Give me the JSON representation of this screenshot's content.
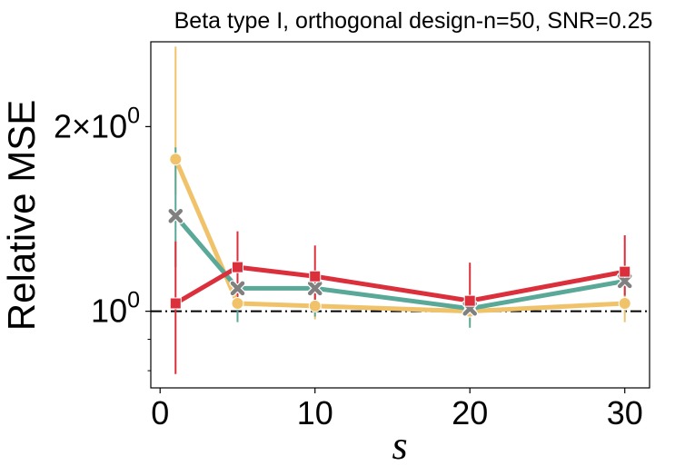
{
  "chart_data": {
    "type": "line",
    "title": "Beta type I, orthogonal design-n=50, SNR=0.25",
    "xlabel": "s",
    "ylabel": "Relative MSE",
    "x": [
      1,
      5,
      10,
      20,
      30
    ],
    "xlim": [
      -0.6,
      31.6
    ],
    "ylim": [
      0.75,
      2.75
    ],
    "yscale": "log",
    "xticks": [
      0,
      10,
      20,
      30
    ],
    "xtick_labels": [
      "0",
      "10",
      "20",
      "30"
    ],
    "yticks_major": [
      {
        "value": 1,
        "base": "10",
        "exp": "0"
      },
      {
        "value": 2,
        "mult": "2",
        "times": "×",
        "base": "10",
        "exp": "0"
      }
    ],
    "yticks_minor": [
      0.8,
      0.9
    ],
    "reference_line": {
      "y": 1.0,
      "style": "dash-dot",
      "color": "#000000"
    },
    "series": [
      {
        "name": "series-yellow",
        "color": "#f0c36a",
        "marker": "circle",
        "values": [
          1.77,
          1.03,
          1.02,
          1.0,
          1.03
        ],
        "err_low": [
          1.55,
          0.97,
          0.97,
          0.96,
          0.96
        ],
        "err_high": [
          2.7,
          1.07,
          1.06,
          1.03,
          1.06
        ]
      },
      {
        "name": "series-teal",
        "color": "#5aa898",
        "marker": "x",
        "values": [
          1.43,
          1.09,
          1.09,
          1.01,
          1.12
        ],
        "err_low": [
          1.18,
          0.96,
          0.98,
          0.94,
          1.06
        ],
        "err_high": [
          1.85,
          1.16,
          1.13,
          1.05,
          1.18
        ]
      },
      {
        "name": "series-red",
        "color": "#dc2f3c",
        "marker": "square",
        "values": [
          1.03,
          1.18,
          1.14,
          1.04,
          1.16
        ],
        "err_low": [
          0.79,
          1.05,
          1.01,
          0.98,
          1.06
        ],
        "err_high": [
          1.3,
          1.35,
          1.28,
          1.2,
          1.33
        ]
      }
    ]
  }
}
